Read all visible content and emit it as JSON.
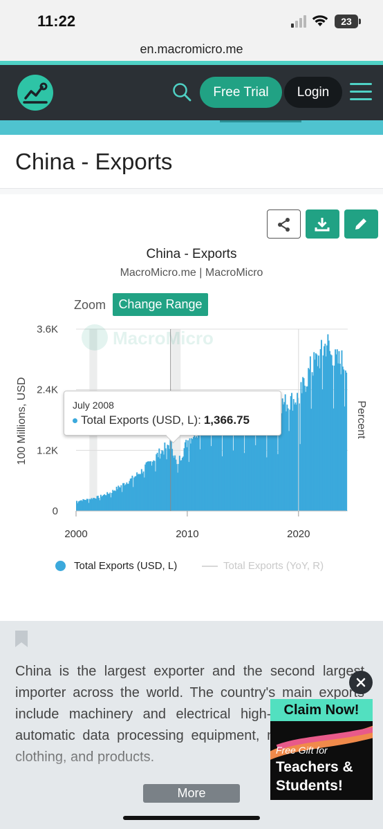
{
  "status_bar": {
    "time": "11:22",
    "battery": "23"
  },
  "browser": {
    "url": "en.macromicro.me"
  },
  "header": {
    "search_icon": "search-icon",
    "free_trial_label": "Free Trial",
    "login_label": "Login",
    "menu_icon": "hamburger-menu-icon"
  },
  "page": {
    "title": "China - Exports"
  },
  "chart": {
    "toolbar": {
      "share_icon": "share-icon",
      "download_icon": "download-icon",
      "edit_icon": "pencil-icon"
    },
    "zoom_label": "Zoom",
    "change_range_label": "Change Range",
    "watermark": "MacroMicro",
    "tooltip": {
      "date": "July 2008",
      "series": "Total Exports (USD, L):",
      "value": "1,366.75"
    },
    "legend": [
      "Total Exports (USD, L)",
      "Total Exports (YoY, R)"
    ]
  },
  "chart_data": {
    "type": "bar",
    "title": "China - Exports",
    "subtitle": "MacroMicro.me | MacroMicro",
    "ylabel": "100 Millions, USD",
    "ylabel_right": "Percent",
    "ylim": [
      0,
      3600
    ],
    "y_ticks": [
      "0",
      "1.2K",
      "2.4K",
      "3.6K"
    ],
    "x_ticks": [
      "2000",
      "2010",
      "2020"
    ],
    "xlim": [
      2000,
      2024.3
    ],
    "grid": true,
    "colors": {
      "series": "#3ba9dc",
      "secondary": "#d7d7d7"
    },
    "series": [
      {
        "name": "Total Exports (USD, L)",
        "points": [
          [
            2000,
            200
          ],
          [
            2001,
            230
          ],
          [
            2002,
            280
          ],
          [
            2003,
            360
          ],
          [
            2004,
            500
          ],
          [
            2005,
            640
          ],
          [
            2006,
            820
          ],
          [
            2007,
            1050
          ],
          [
            2008,
            1250
          ],
          [
            2008.5,
            1366.75
          ],
          [
            2009,
            900
          ],
          [
            2010,
            1400
          ],
          [
            2011,
            1650
          ],
          [
            2012,
            1750
          ],
          [
            2013,
            1900
          ],
          [
            2014,
            2050
          ],
          [
            2015,
            1950
          ],
          [
            2016,
            1850
          ],
          [
            2017,
            1950
          ],
          [
            2018,
            2100
          ],
          [
            2019,
            2150
          ],
          [
            2020,
            2250
          ],
          [
            2021,
            2800
          ],
          [
            2022,
            3100
          ],
          [
            2022.5,
            3350
          ],
          [
            2023,
            2950
          ],
          [
            2024,
            2950
          ],
          [
            2024.3,
            2800
          ]
        ]
      },
      {
        "name": "Total Exports (YoY, R)",
        "points": []
      }
    ]
  },
  "description": {
    "text": "China is the largest exporter and the second largest importer across the world. The country's main exports include machinery and electrical high-tech products, automatic data processing equipment, mobile phones, clothing, and products.",
    "more_label": "More"
  },
  "ad": {
    "top": "Claim Now!",
    "small": "Free Gift for",
    "line1": "Teachers &",
    "line2": "Students!"
  }
}
